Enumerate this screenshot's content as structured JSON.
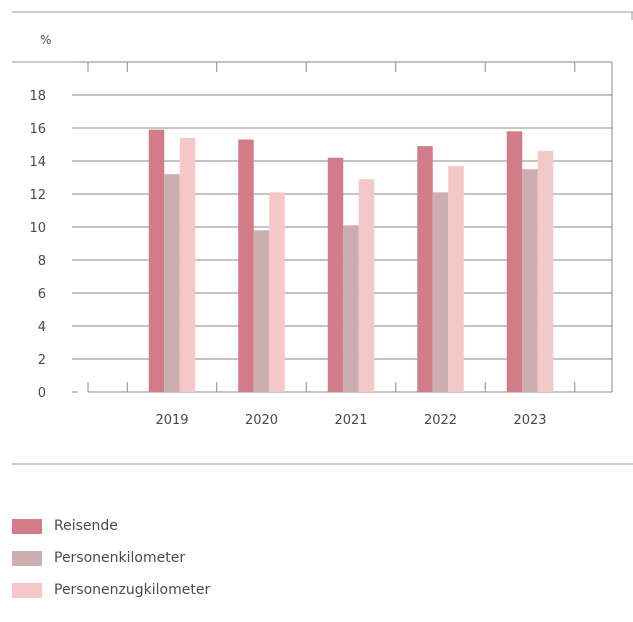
{
  "chart_data": {
    "type": "bar",
    "unit_label": "%",
    "categories": [
      "2019",
      "2020",
      "2021",
      "2022",
      "2023"
    ],
    "y_ticks": [
      0,
      2,
      4,
      6,
      8,
      10,
      12,
      14,
      16,
      18
    ],
    "ylim": [
      0,
      20
    ],
    "grid": true,
    "legend_position": "bottom-left",
    "series": [
      {
        "name": "Reisende",
        "color": "#d27b89",
        "values": [
          15.9,
          15.3,
          14.2,
          14.9,
          15.8
        ]
      },
      {
        "name": "Personenkilometer",
        "color": "#ccaeb0",
        "values": [
          13.2,
          9.8,
          10.1,
          12.1,
          13.5
        ]
      },
      {
        "name": "Personenzugkilometer",
        "color": "#f4c7c9",
        "values": [
          15.4,
          12.1,
          12.9,
          13.7,
          14.6
        ]
      }
    ]
  }
}
